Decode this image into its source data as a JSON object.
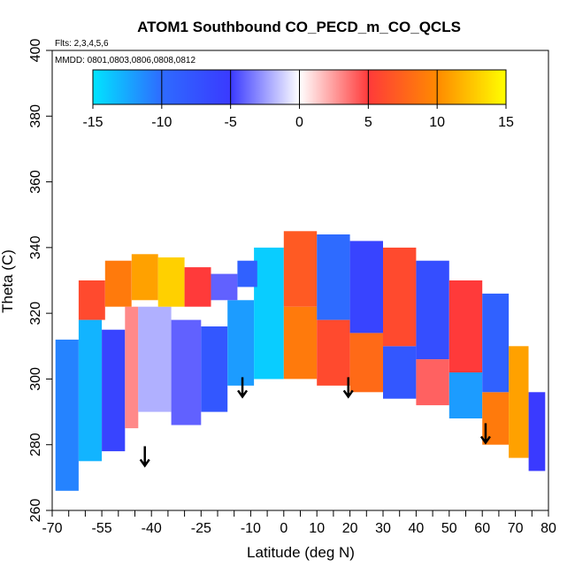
{
  "chart_data": {
    "type": "heatmap",
    "title": "ATOM1 Southbound CO_PECD_m_CO_QCLS",
    "flights_note": "Flts: 2,3,4,5,6",
    "dates_note": "MMDD: 0801,0803,0806,0808,0812",
    "xlabel": "Latitude (deg N)",
    "ylabel": "Theta (C)",
    "xlim": [
      -70,
      80
    ],
    "ylim": [
      260,
      400
    ],
    "x_ticks": [
      -70,
      -55,
      -40,
      -25,
      -10,
      0,
      10,
      20,
      30,
      40,
      50,
      60,
      70,
      80
    ],
    "x_minor_ticks": [
      -70,
      -65,
      -60,
      -55,
      -50,
      -45,
      -40,
      -35,
      -30,
      -25,
      -20,
      -15,
      -10,
      -5,
      0,
      5,
      10,
      15,
      20,
      25,
      30,
      35,
      40,
      45,
      50,
      55,
      60,
      65,
      70,
      75,
      80
    ],
    "y_ticks": [
      260,
      280,
      300,
      320,
      340,
      360,
      380,
      400
    ],
    "colorbar": {
      "range": [
        -15,
        15
      ],
      "ticks": [
        -15,
        -10,
        -5,
        0,
        5,
        10,
        15
      ],
      "stops": [
        "#00e5ff",
        "#2e6bff",
        "#3a3aff",
        "#ffffff",
        "#ff3a3a",
        "#ff8a00",
        "#ffff00"
      ]
    },
    "arrows": [
      {
        "lat": -42,
        "theta": 279
      },
      {
        "lat": -12.5,
        "theta": 300
      },
      {
        "lat": 19.5,
        "theta": 300
      },
      {
        "lat": 61,
        "theta": 286
      }
    ],
    "regions": [
      {
        "lat": [
          -69,
          -62
        ],
        "theta": [
          266,
          312
        ],
        "value": -11
      },
      {
        "lat": [
          -62,
          -55
        ],
        "theta": [
          275,
          318
        ],
        "value": -13
      },
      {
        "lat": [
          -55,
          -48
        ],
        "theta": [
          278,
          315
        ],
        "value": -6
      },
      {
        "lat": [
          -48,
          -44
        ],
        "theta": [
          285,
          322
        ],
        "value": 3
      },
      {
        "lat": [
          -44,
          -34
        ],
        "theta": [
          290,
          322
        ],
        "value": -2
      },
      {
        "lat": [
          -34,
          -25
        ],
        "theta": [
          286,
          318
        ],
        "value": -4
      },
      {
        "lat": [
          -25,
          -17
        ],
        "theta": [
          290,
          316
        ],
        "value": -8
      },
      {
        "lat": [
          -17,
          -9
        ],
        "theta": [
          298,
          324
        ],
        "value": -12
      },
      {
        "lat": [
          -9,
          0
        ],
        "theta": [
          300,
          340
        ],
        "value": -14
      },
      {
        "lat": [
          -62,
          -54
        ],
        "theta": [
          318,
          330
        ],
        "value": 6
      },
      {
        "lat": [
          -54,
          -46
        ],
        "theta": [
          322,
          336
        ],
        "value": 9
      },
      {
        "lat": [
          -46,
          -38
        ],
        "theta": [
          324,
          338
        ],
        "value": 11
      },
      {
        "lat": [
          -38,
          -30
        ],
        "theta": [
          322,
          337
        ],
        "value": 13
      },
      {
        "lat": [
          -30,
          -22
        ],
        "theta": [
          322,
          334
        ],
        "value": 5
      },
      {
        "lat": [
          -22,
          -14
        ],
        "theta": [
          324,
          332
        ],
        "value": -4
      },
      {
        "lat": [
          -14,
          -8
        ],
        "theta": [
          328,
          336
        ],
        "value": -9
      },
      {
        "lat": [
          0,
          10
        ],
        "theta": [
          300,
          322
        ],
        "value": 9
      },
      {
        "lat": [
          0,
          10
        ],
        "theta": [
          322,
          345
        ],
        "value": 7
      },
      {
        "lat": [
          10,
          20
        ],
        "theta": [
          298,
          318
        ],
        "value": 6
      },
      {
        "lat": [
          10,
          20
        ],
        "theta": [
          318,
          344
        ],
        "value": -10
      },
      {
        "lat": [
          20,
          30
        ],
        "theta": [
          296,
          314
        ],
        "value": 8
      },
      {
        "lat": [
          20,
          30
        ],
        "theta": [
          314,
          342
        ],
        "value": -6
      },
      {
        "lat": [
          30,
          40
        ],
        "theta": [
          294,
          310
        ],
        "value": -8
      },
      {
        "lat": [
          30,
          40
        ],
        "theta": [
          310,
          340
        ],
        "value": 6
      },
      {
        "lat": [
          40,
          50
        ],
        "theta": [
          292,
          306
        ],
        "value": 4
      },
      {
        "lat": [
          40,
          50
        ],
        "theta": [
          306,
          336
        ],
        "value": -7
      },
      {
        "lat": [
          50,
          60
        ],
        "theta": [
          288,
          302
        ],
        "value": -12
      },
      {
        "lat": [
          50,
          60
        ],
        "theta": [
          302,
          330
        ],
        "value": 5
      },
      {
        "lat": [
          60,
          68
        ],
        "theta": [
          280,
          296
        ],
        "value": 9
      },
      {
        "lat": [
          60,
          68
        ],
        "theta": [
          296,
          326
        ],
        "value": -9
      },
      {
        "lat": [
          68,
          74
        ],
        "theta": [
          276,
          310
        ],
        "value": 11
      },
      {
        "lat": [
          74,
          79
        ],
        "theta": [
          272,
          296
        ],
        "value": -5
      }
    ]
  }
}
